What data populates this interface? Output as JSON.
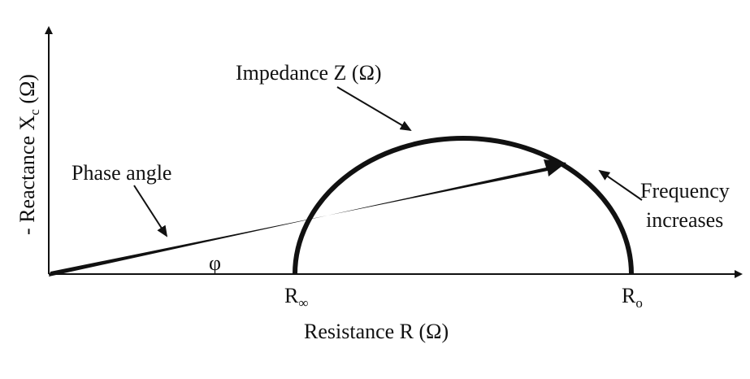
{
  "impedance_label": "Impedance Z (Ω)",
  "phase_angle_label": "Phase angle",
  "frequency_label": [
    "Frequency",
    "increases"
  ],
  "angle_symbol": "φ",
  "r_infinity": {
    "main": "R",
    "sub": "∞"
  },
  "r_zero": {
    "main": "R",
    "sub": "o"
  },
  "y_axis_label": {
    "main": "- Reactance X",
    "sub": "c",
    "unit": " (Ω)"
  },
  "x_axis_label": "Resistance R (Ω)"
}
